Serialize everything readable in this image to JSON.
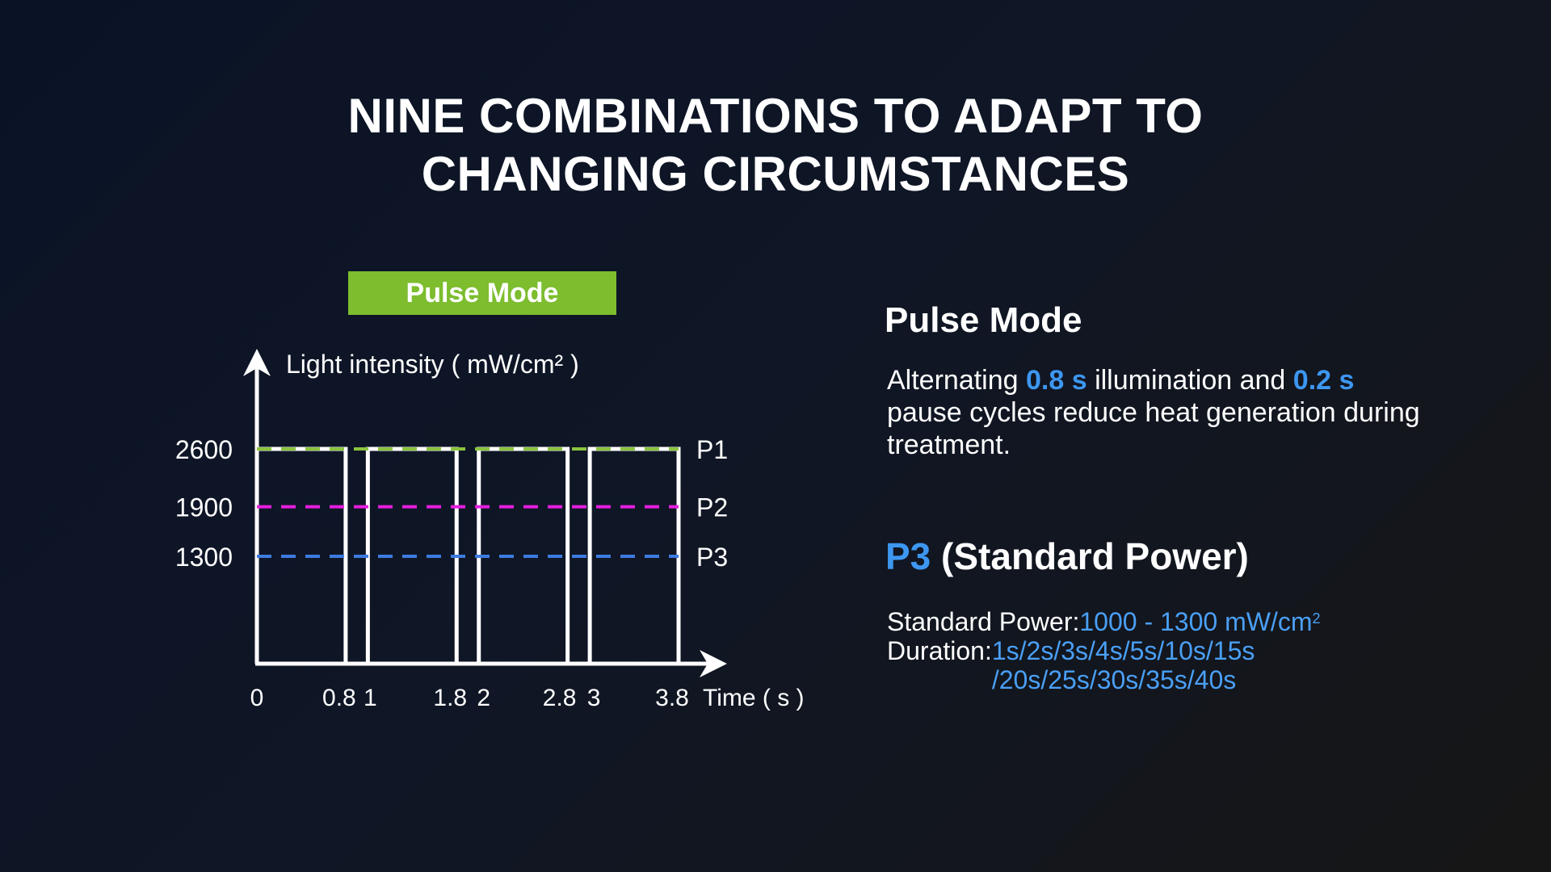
{
  "title": {
    "line1": "NINE COMBINATIONS TO ADAPT TO",
    "line2": "CHANGING CIRCUMSTANCES"
  },
  "badge": "Pulse Mode",
  "colors": {
    "badge_bg": "#7dbd2e",
    "p1": "#8ac43f",
    "p2": "#e51ee0",
    "p3": "#3d7be0",
    "highlight": "#3d97f0"
  },
  "chart_data": {
    "type": "line",
    "ylabel": "Light intensity ( mW/cm² )",
    "xlabel": "Time ( s )",
    "x_ticks": [
      "0",
      "0.8",
      "1",
      "1.8",
      "2",
      "2.8",
      "3",
      "3.8"
    ],
    "x_tick_values": [
      0,
      0.8,
      1,
      1.8,
      2,
      2.8,
      3,
      3.8
    ],
    "y_ticks": [
      "2600",
      "1900",
      "1300"
    ],
    "xlim": [
      0,
      3.8
    ],
    "ylim": [
      0,
      2600
    ],
    "pulses": [
      {
        "start": 0,
        "end": 0.8,
        "value": 2600
      },
      {
        "start": 1,
        "end": 1.8,
        "value": 2600
      },
      {
        "start": 2,
        "end": 2.8,
        "value": 2600
      },
      {
        "start": 3,
        "end": 3.8,
        "value": 2600
      }
    ],
    "series": [
      {
        "name": "P1",
        "value": 2600,
        "color": "#8ac43f"
      },
      {
        "name": "P2",
        "value": 1900,
        "color": "#e51ee0"
      },
      {
        "name": "P3",
        "value": 1300,
        "color": "#3d7be0"
      }
    ]
  },
  "info": {
    "heading": "Pulse Mode",
    "desc_part1": "Alternating ",
    "desc_hl1": "0.8 s",
    "desc_part2": " illumination and ",
    "desc_hl2": "0.2 s",
    "desc_part3": " pause cycles reduce heat generation during treatment.",
    "mode_name": "P3",
    "mode_label": " (Standard Power)",
    "power_label": "Standard Power: ",
    "power_value": "1000 - 1300 mW/cm",
    "power_sup": "2",
    "duration_label": "Duration: ",
    "duration_line1": "1s/2s/3s/4s/5s/10s/15s",
    "duration_line2": "/20s/25s/30s/35s/40s"
  }
}
